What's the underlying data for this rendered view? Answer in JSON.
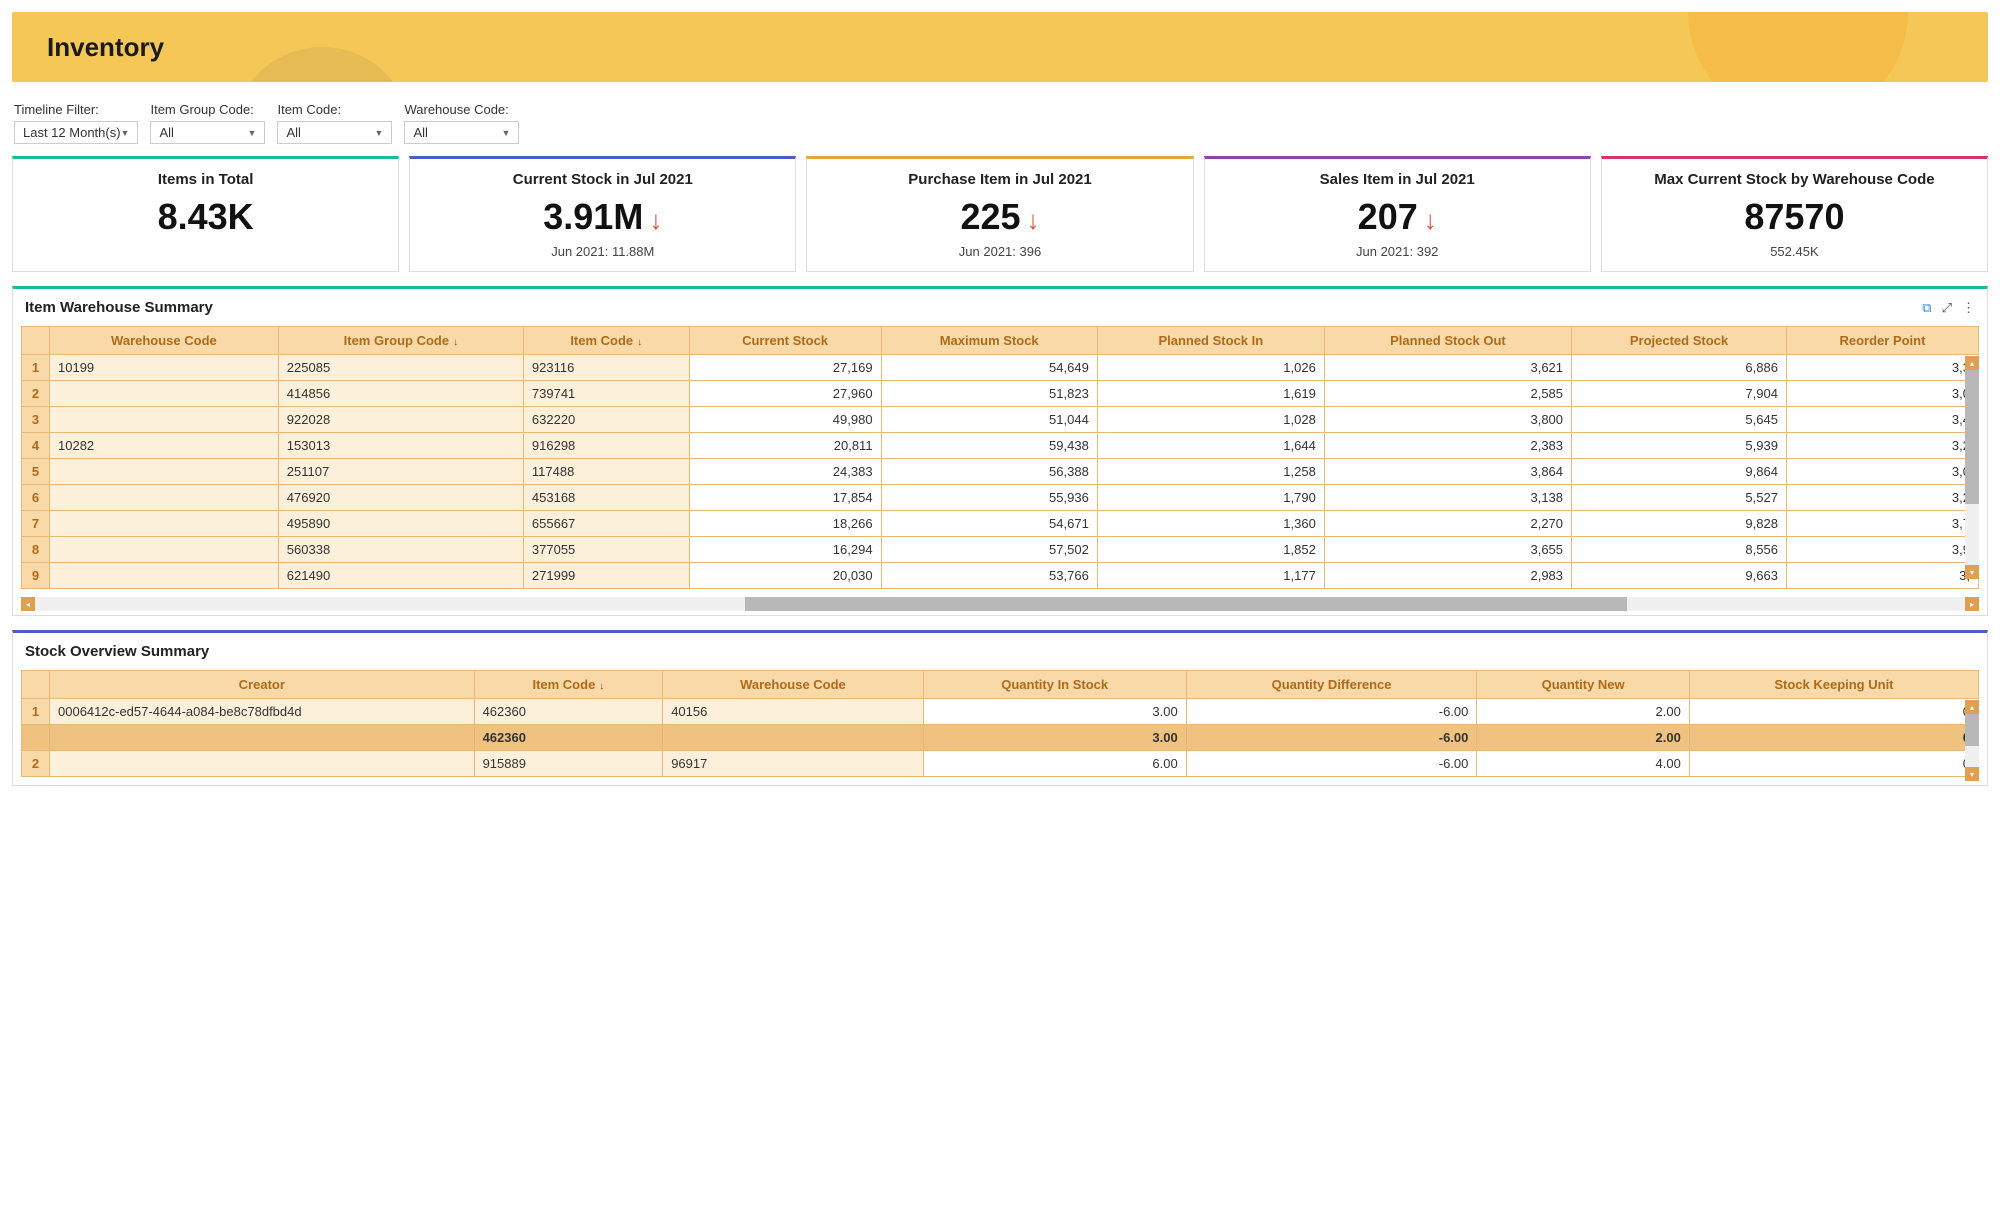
{
  "header": {
    "title": "Inventory"
  },
  "colors": {
    "banner_bg": "#f5c757",
    "kpi_border": [
      "#1abc9c",
      "#4a5fc1",
      "#e6a23c",
      "#8e44ad",
      "#d6336c"
    ],
    "panel1_border": "#1abc9c",
    "panel2_border": "#4a5fc1",
    "table_header_bg": "#f9d9a8",
    "table_header_fg": "#b06a1a",
    "table_dim_bg": "#fdf0db",
    "table_border": "#e8b878",
    "down_arrow": "#e74c3c"
  },
  "filters": [
    {
      "label": "Timeline Filter:",
      "value": "Last 12 Month(s)"
    },
    {
      "label": "Item Group Code:",
      "value": "All"
    },
    {
      "label": "Item Code:",
      "value": "All"
    },
    {
      "label": "Warehouse Code:",
      "value": "All"
    }
  ],
  "kpis": [
    {
      "title": "Items in Total",
      "value": "8.43K",
      "arrow": false,
      "sub": ""
    },
    {
      "title": "Current Stock in Jul 2021",
      "value": "3.91M",
      "arrow": true,
      "sub": "Jun 2021: 11.88M"
    },
    {
      "title": "Purchase Item in Jul 2021",
      "value": "225",
      "arrow": true,
      "sub": "Jun 2021: 396"
    },
    {
      "title": "Sales Item in Jul 2021",
      "value": "207",
      "arrow": true,
      "sub": "Jun 2021: 392"
    },
    {
      "title": "Max Current Stock by Warehouse Code",
      "value": "87570",
      "arrow": false,
      "sub": "552.45K"
    }
  ],
  "panel1": {
    "title": "Item Warehouse Summary",
    "columns": [
      "Warehouse Code",
      "Item Group Code",
      "Item Code",
      "Current Stock",
      "Maximum Stock",
      "Planned Stock In",
      "Planned Stock Out",
      "Projected Stock",
      "Reorder Point"
    ],
    "sort_cols": [
      1,
      2
    ],
    "rows": [
      {
        "idx": "1",
        "wh": "10199",
        "grp": "225085",
        "item": "923116",
        "vals": [
          "27,169",
          "54,649",
          "1,026",
          "3,621",
          "6,886",
          "3,3"
        ]
      },
      {
        "idx": "2",
        "wh": "",
        "grp": "414856",
        "item": "739741",
        "vals": [
          "27,960",
          "51,823",
          "1,619",
          "2,585",
          "7,904",
          "3,0"
        ]
      },
      {
        "idx": "3",
        "wh": "",
        "grp": "922028",
        "item": "632220",
        "vals": [
          "49,980",
          "51,044",
          "1,028",
          "3,800",
          "5,645",
          "3,4"
        ]
      },
      {
        "idx": "4",
        "wh": "10282",
        "grp": "153013",
        "item": "916298",
        "vals": [
          "20,811",
          "59,438",
          "1,644",
          "2,383",
          "5,939",
          "3,2"
        ]
      },
      {
        "idx": "5",
        "wh": "",
        "grp": "251107",
        "item": "117488",
        "vals": [
          "24,383",
          "56,388",
          "1,258",
          "3,864",
          "9,864",
          "3,0"
        ]
      },
      {
        "idx": "6",
        "wh": "",
        "grp": "476920",
        "item": "453168",
        "vals": [
          "17,854",
          "55,936",
          "1,790",
          "3,138",
          "5,527",
          "3,2"
        ]
      },
      {
        "idx": "7",
        "wh": "",
        "grp": "495890",
        "item": "655667",
        "vals": [
          "18,266",
          "54,671",
          "1,360",
          "2,270",
          "9,828",
          "3,7"
        ]
      },
      {
        "idx": "8",
        "wh": "",
        "grp": "560338",
        "item": "377055",
        "vals": [
          "16,294",
          "57,502",
          "1,852",
          "3,655",
          "8,556",
          "3,9"
        ]
      },
      {
        "idx": "9",
        "wh": "",
        "grp": "621490",
        "item": "271999",
        "vals": [
          "20,030",
          "53,766",
          "1,177",
          "2,983",
          "9,663",
          "3,"
        ]
      }
    ],
    "hscroll": {
      "left_pct": 37,
      "width_pct": 45
    }
  },
  "panel2": {
    "title": "Stock Overview Summary",
    "columns": [
      "Creator",
      "Item Code",
      "Warehouse Code",
      "Quantity In Stock",
      "Quantity Difference",
      "Quantity New",
      "Stock Keeping Unit"
    ],
    "sort_cols": [
      1
    ],
    "rows": [
      {
        "idx": "1",
        "creator": "0006412c-ed57-4644-a084-be8c78dfbd4d",
        "item": "462360",
        "wh": "40156",
        "vals": [
          "3.00",
          "-6.00",
          "2.00",
          "0"
        ],
        "subtotal": false
      },
      {
        "idx": "",
        "creator": "",
        "item": "462360",
        "wh": "",
        "vals": [
          "3.00",
          "-6.00",
          "2.00",
          "0"
        ],
        "subtotal": true
      },
      {
        "idx": "2",
        "creator": "",
        "item": "915889",
        "wh": "96917",
        "vals": [
          "6.00",
          "-6.00",
          "4.00",
          "0"
        ],
        "subtotal": false
      }
    ]
  }
}
